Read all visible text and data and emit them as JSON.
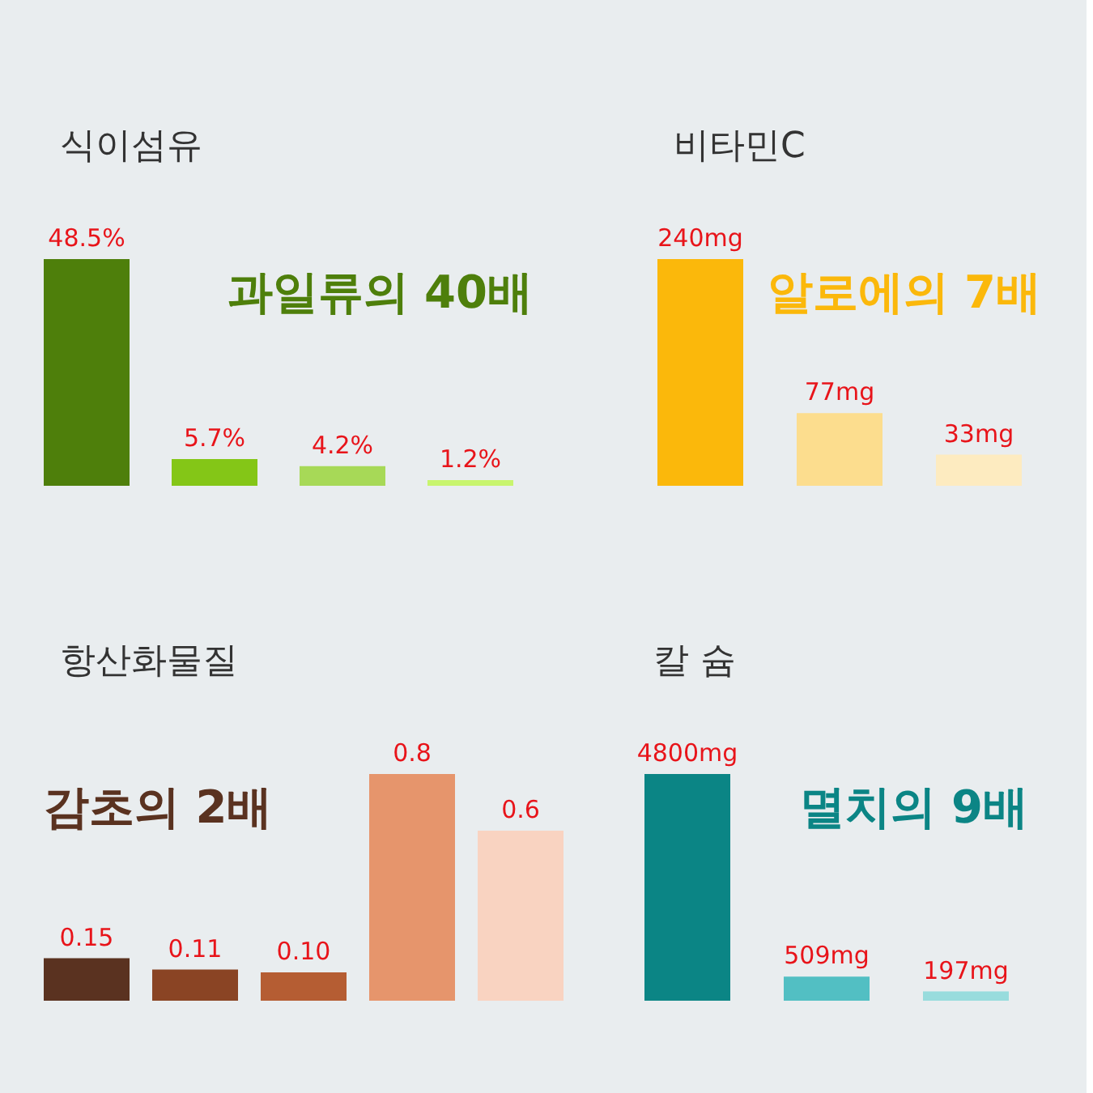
{
  "chart_data": [
    {
      "type": "bar",
      "title": "식이섬유",
      "categories": [
        null,
        null,
        null,
        null
      ],
      "values": [
        48.5,
        5.7,
        4.2,
        1.2
      ],
      "colors": [
        "#4e7f0b",
        "#84c617",
        "#a7d957",
        "#c8f56e"
      ],
      "value_labels": [
        "48.5%",
        "5.7%",
        "4.2%",
        "1.2%"
      ],
      "annotations": [
        "과일류의 40배"
      ]
    },
    {
      "type": "bar",
      "title": "비타민C",
      "categories": [
        null,
        null,
        null
      ],
      "values": [
        240,
        77,
        33
      ],
      "colors": [
        "#fbb80b",
        "#fcdd8e",
        "#fdebc0"
      ],
      "value_labels": [
        "240mg",
        "77mg",
        "33mg"
      ],
      "annotations": [
        "알로에의 7배"
      ]
    },
    {
      "type": "bar",
      "title": "항산화물질",
      "categories": [
        null,
        null,
        null,
        null,
        null
      ],
      "values": [
        0.15,
        0.11,
        0.1,
        0.8,
        0.6
      ],
      "colors": [
        "#5a3220",
        "#8a4424",
        "#b55d33",
        "#e6956c",
        "#f9d3c1"
      ],
      "value_labels": [
        "0.15",
        "0.11",
        "0.10",
        "0.8",
        "0.6"
      ],
      "annotations": [
        "감초의 2배"
      ]
    },
    {
      "type": "bar",
      "title": "칼 슘",
      "categories": [
        null,
        null,
        null
      ],
      "values": [
        4800,
        509,
        197
      ],
      "colors": [
        "#0b8585",
        "#52bfc3",
        "#98dcdd"
      ],
      "value_labels": [
        "4800mg",
        "509mg",
        "197mg"
      ],
      "annotations": [
        "멸치의 9배"
      ]
    }
  ]
}
